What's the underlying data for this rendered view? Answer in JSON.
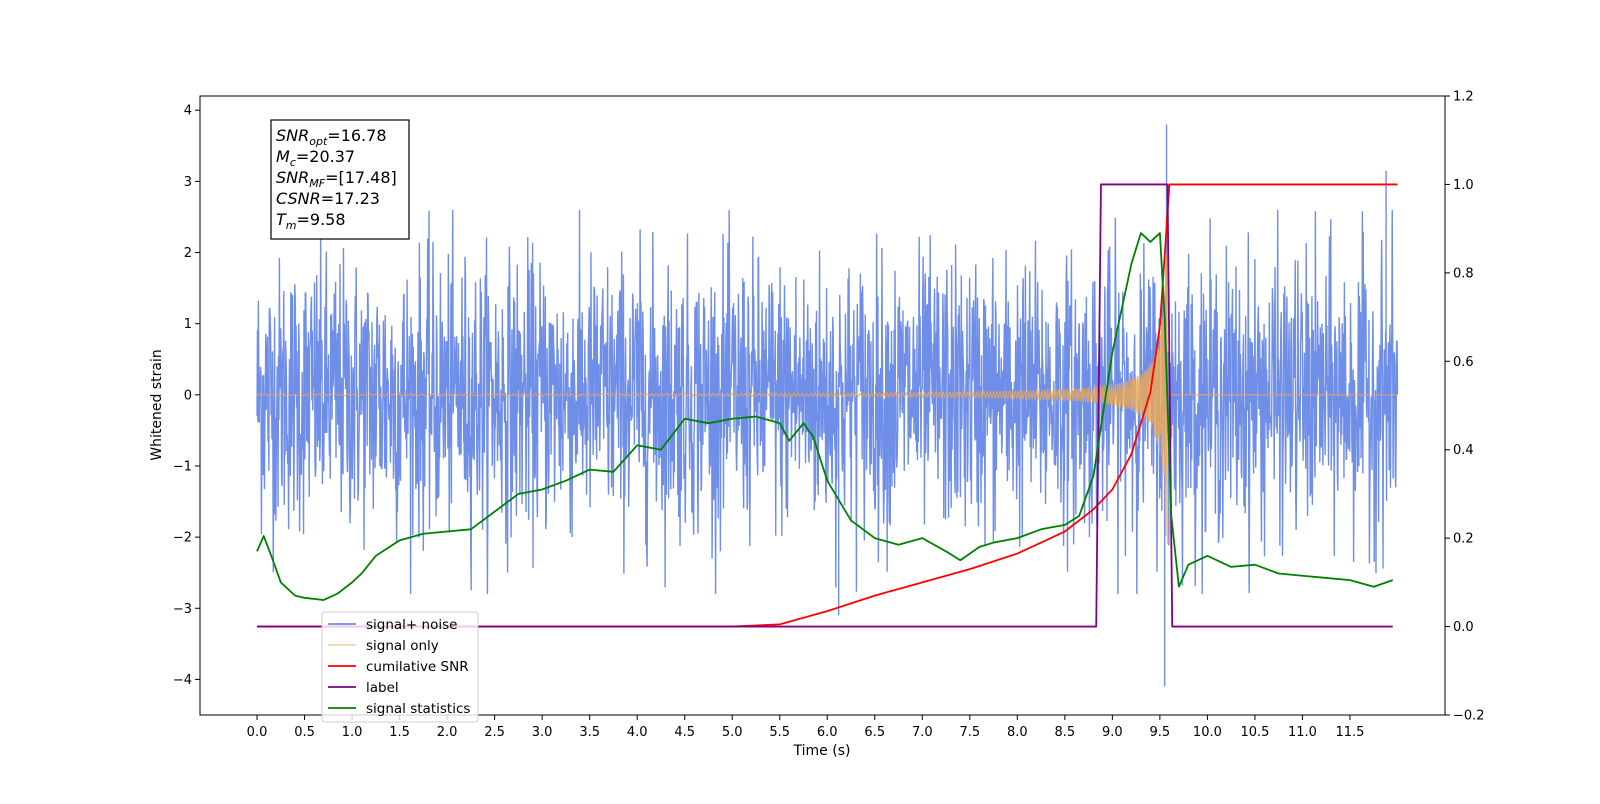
{
  "chart_data": {
    "type": "line",
    "xlabel": "Time (s)",
    "ylabel": "Whitened strain",
    "xlim": [
      -0.6,
      12.5
    ],
    "ylim": [
      -4.5,
      4.2
    ],
    "y2lim": [
      -0.2,
      1.2
    ],
    "x_ticks": [
      0.0,
      0.5,
      1.0,
      1.5,
      2.0,
      2.5,
      3.0,
      3.5,
      4.0,
      4.5,
      5.0,
      5.5,
      6.0,
      6.5,
      7.0,
      7.5,
      8.0,
      8.5,
      9.0,
      9.5,
      10.0,
      10.5,
      11.0,
      11.5
    ],
    "x_tick_labels": [
      "0.0",
      "0.5",
      "1.0",
      "1.5",
      "2.0",
      "2.5",
      "3.0",
      "3.5",
      "4.0",
      "4.5",
      "5.0",
      "5.5",
      "6.0",
      "6.5",
      "7.0",
      "7.5",
      "8.0",
      "8.5",
      "9.0",
      "9.5",
      "10.0",
      "10.5",
      "11.0",
      "11.5"
    ],
    "y_ticks": [
      -4,
      -3,
      -2,
      -1,
      0,
      1,
      2,
      3,
      4
    ],
    "y_tick_labels": [
      "−4",
      "−3",
      "−2",
      "−1",
      "0",
      "1",
      "2",
      "3",
      "4"
    ],
    "y2_ticks": [
      -0.2,
      0.0,
      0.2,
      0.4,
      0.6,
      0.8,
      1.0,
      1.2
    ],
    "y2_tick_labels": [
      "−0.2",
      "0.0",
      "0.2",
      "0.4",
      "0.6",
      "0.8",
      "1.0",
      "1.2"
    ],
    "grid": false,
    "legend_position": "lower-left",
    "annotation": [
      {
        "sym": "SNR",
        "sub": "opt",
        "value": "=16.78"
      },
      {
        "sym": "M",
        "sub": "c",
        "value": "=20.37"
      },
      {
        "sym": "SNR",
        "sub": "MF",
        "value": "=[17.48]"
      },
      {
        "sym": "CSNR",
        "sub": "",
        "value": "=17.23"
      },
      {
        "sym": "T",
        "sub": "m",
        "value": "=9.58"
      }
    ],
    "series": [
      {
        "name": "signal+ noise",
        "axis": "left",
        "color": "#6f8ee8",
        "kind": "noise",
        "x_range": [
          0.0,
          12.0
        ],
        "envelope": [
          -2.8,
          2.6
        ],
        "spikes": [
          [
            9.57,
            3.8
          ],
          [
            9.55,
            -4.1
          ],
          [
            11.88,
            3.15
          ],
          [
            6.12,
            -3.1
          ]
        ]
      },
      {
        "name": "signal only",
        "axis": "left",
        "color": "#e8a85a",
        "kind": "chirp",
        "x_range": [
          0.0,
          12.0
        ],
        "merger_time": 9.58,
        "peak_amplitude": 3.0
      },
      {
        "name": "cumilative SNR",
        "axis": "right",
        "color": "#ff0000",
        "x": [
          0.0,
          5.0,
          5.5,
          6.0,
          6.5,
          7.0,
          7.5,
          8.0,
          8.5,
          8.8,
          9.0,
          9.2,
          9.4,
          9.5,
          9.56,
          9.6,
          12.0
        ],
        "values": [
          0.0,
          0.0,
          0.005,
          0.035,
          0.07,
          0.1,
          0.13,
          0.165,
          0.215,
          0.265,
          0.31,
          0.39,
          0.53,
          0.68,
          0.87,
          1.0,
          1.0
        ]
      },
      {
        "name": "label",
        "axis": "right",
        "color": "#800080",
        "x": [
          0.0,
          8.83,
          8.88,
          9.58,
          9.63,
          11.95
        ],
        "values": [
          0.0,
          0.0,
          1.0,
          1.0,
          0.0,
          0.0
        ]
      },
      {
        "name": "signal statistics",
        "axis": "right",
        "color": "#008000",
        "x": [
          0.0,
          0.07,
          0.15,
          0.25,
          0.4,
          0.5,
          0.7,
          0.85,
          1.0,
          1.1,
          1.25,
          1.5,
          1.75,
          2.0,
          2.25,
          2.5,
          2.75,
          3.0,
          3.25,
          3.5,
          3.75,
          4.0,
          4.25,
          4.5,
          4.75,
          5.0,
          5.25,
          5.5,
          5.6,
          5.75,
          5.85,
          6.0,
          6.25,
          6.5,
          6.75,
          7.0,
          7.25,
          7.4,
          7.5,
          7.6,
          7.75,
          8.0,
          8.25,
          8.5,
          8.65,
          8.8,
          9.0,
          9.2,
          9.3,
          9.4,
          9.5,
          9.55,
          9.62,
          9.7,
          9.8,
          10.0,
          10.25,
          10.5,
          10.75,
          11.0,
          11.25,
          11.5,
          11.75,
          11.95
        ],
        "values": [
          0.17,
          0.205,
          0.16,
          0.1,
          0.07,
          0.065,
          0.06,
          0.075,
          0.1,
          0.12,
          0.16,
          0.195,
          0.21,
          0.215,
          0.22,
          0.26,
          0.3,
          0.31,
          0.33,
          0.355,
          0.35,
          0.41,
          0.4,
          0.47,
          0.46,
          0.47,
          0.475,
          0.46,
          0.42,
          0.46,
          0.43,
          0.33,
          0.24,
          0.2,
          0.185,
          0.2,
          0.17,
          0.15,
          0.165,
          0.18,
          0.19,
          0.2,
          0.22,
          0.23,
          0.25,
          0.34,
          0.62,
          0.82,
          0.89,
          0.87,
          0.89,
          0.7,
          0.25,
          0.09,
          0.14,
          0.16,
          0.135,
          0.14,
          0.12,
          0.115,
          0.11,
          0.105,
          0.09,
          0.105
        ]
      }
    ]
  }
}
